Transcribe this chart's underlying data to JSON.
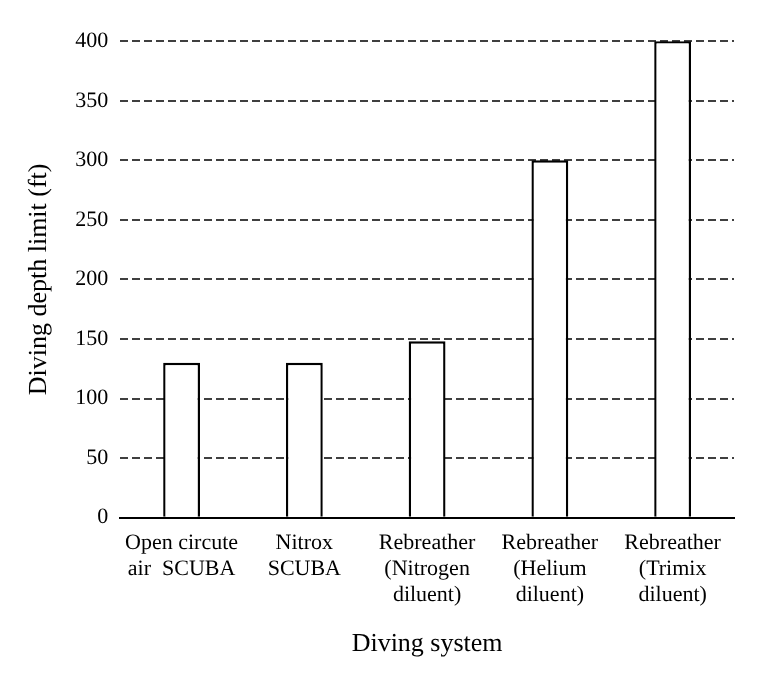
{
  "chart_data": {
    "type": "bar",
    "xlabel": "Diving system",
    "ylabel": "Diving depth limit (ft)",
    "categories": [
      "Open circute\nair  SCUBA",
      "Nitrox\nSCUBA",
      "Rebreather\n(Nitrogen\ndiluent)",
      "Rebreather\n(Helium\ndiluent)",
      "Rebreather\n(Trimix\ndiluent)"
    ],
    "values": [
      130,
      130,
      148,
      300,
      400
    ],
    "color": "#ffffff",
    "ylim": [
      0,
      400
    ],
    "yticks": [
      0,
      50,
      100,
      150,
      200,
      250,
      300,
      350,
      400
    ],
    "grid": "y",
    "legend": false
  }
}
